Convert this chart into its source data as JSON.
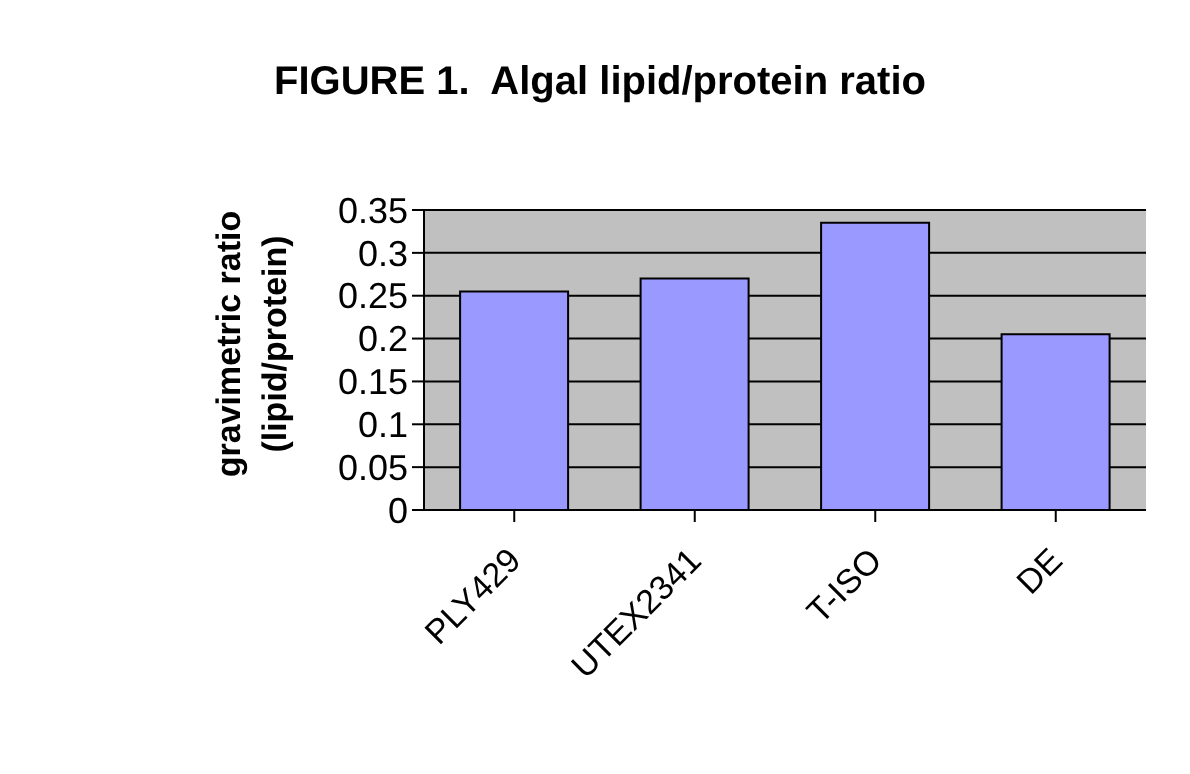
{
  "chart_data": {
    "type": "bar",
    "title": "FIGURE 1.  Algal lipid/protein ratio",
    "ylabel": "gravimetric ratio (lipid/protein)",
    "categories": [
      "PLY429",
      "UTEX2341",
      "T-ISO",
      "DE"
    ],
    "values": [
      0.255,
      0.27,
      0.335,
      0.205
    ],
    "color": "#9999ff",
    "ylim": [
      0,
      0.35
    ],
    "yticks": [
      0,
      0.05,
      0.1,
      0.15,
      0.2,
      0.25,
      0.3,
      0.35
    ],
    "grid": "y",
    "legend": false
  }
}
